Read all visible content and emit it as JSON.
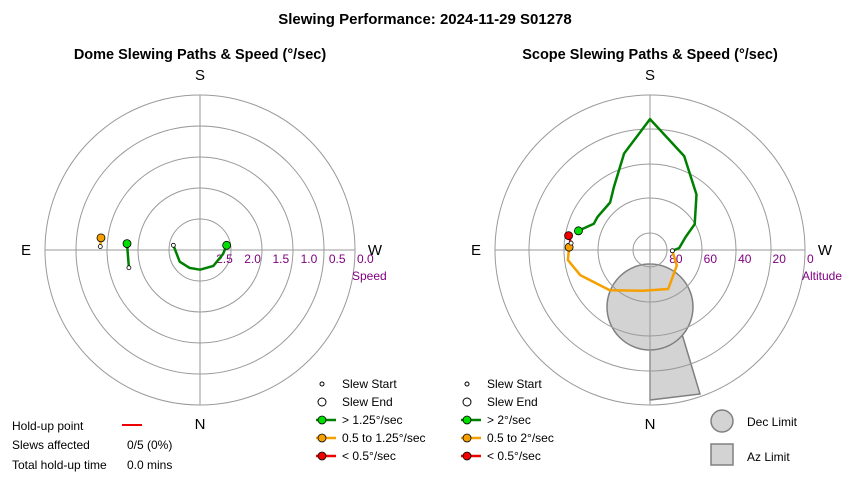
{
  "title": "Slewing Performance: 2024-11-29 S01278",
  "colors": {
    "fast": "#00dd00",
    "fast_line": "#008000",
    "medium": "#f5a000",
    "slow": "#ee0000",
    "ring": "#9a9a9a",
    "tick": "#800080",
    "limit_fill": "#d3d3d3",
    "limit_stroke": "#808080",
    "holdup": "#ee0000"
  },
  "chart_data": [
    {
      "type": "polar-line",
      "title": "Dome Slewing Paths & Speed (°/sec)",
      "compass": {
        "top": "S",
        "bottom": "N",
        "left": "E",
        "right": "W"
      },
      "radial_axis": {
        "name": "Speed",
        "ticks": [
          "2.5",
          "2.0",
          "1.5",
          "1.0",
          "0.5",
          "0.0"
        ],
        "range": [
          2.5,
          0.0
        ]
      },
      "paths": [
        {
          "class": "> 1.25°/sec",
          "speed_range": [
            2.27,
            2.4
          ],
          "azimuth_deg": [
            100,
            60,
            30,
            0,
            320,
            280,
            260
          ]
        },
        {
          "class": "> 1.25°/sec",
          "speed_range": [
            1.45,
            1.5
          ],
          "azimuth_deg": [
            76,
            95
          ]
        },
        {
          "class": "0.5 to 1.25°/sec",
          "speed_range": [
            0.98,
            0.98
          ],
          "azimuth_deg": [
            92,
            97
          ]
        }
      ],
      "legend": {
        "start": "Slew Start",
        "end": "Slew End",
        "fast": "> 1.25°/sec",
        "medium": "0.5 to 1.25°/sec",
        "slow": "< 0.5°/sec"
      }
    },
    {
      "type": "polar-line",
      "title": "Scope Slewing Paths & Speed (°/sec)",
      "compass": {
        "top": "S",
        "bottom": "N",
        "left": "E",
        "right": "W"
      },
      "radial_axis": {
        "name": "Altitude",
        "ticks": [
          "80",
          "60",
          "40",
          "20",
          "0"
        ],
        "range": [
          90,
          0
        ]
      },
      "paths": [
        {
          "class": "> 2°/sec",
          "points": [
            [
              272,
              77
            ],
            [
              266,
              73
            ],
            [
              250,
              68
            ],
            [
              240,
              60
            ],
            [
              220,
              48
            ],
            [
              200,
              32
            ],
            [
              180,
              14
            ],
            [
              165,
              32
            ],
            [
              150,
              48
            ],
            [
              140,
              54
            ],
            [
              122,
              54
            ],
            [
              115,
              54
            ],
            [
              105,
              47
            ]
          ]
        },
        {
          "class": "0.5 to 2°/sec",
          "points": [
            [
              272,
              77
            ],
            [
              300,
              72
            ],
            [
              335,
              65
            ],
            [
              10,
              66
            ],
            [
              45,
              57
            ],
            [
              70,
              47
            ],
            [
              83,
              42
            ],
            [
              92,
              43
            ]
          ]
        },
        {
          "class": "< 0.5°/sec",
          "points": [
            [
              95,
              44
            ],
            [
              100,
              42
            ]
          ]
        }
      ],
      "limits": {
        "dec_limit": "Dec Limit",
        "az_limit": "Az Limit"
      },
      "legend": {
        "start": "Slew Start",
        "end": "Slew End",
        "fast": "> 2°/sec",
        "medium": "0.5 to 2°/sec",
        "slow": "< 0.5°/sec"
      }
    }
  ],
  "holdup": {
    "point_label": "Hold-up point",
    "slews_label": "Slews affected",
    "slews_value": "0/5 (0%)",
    "time_label": "Total hold-up time",
    "time_value": "0.0 mins"
  }
}
